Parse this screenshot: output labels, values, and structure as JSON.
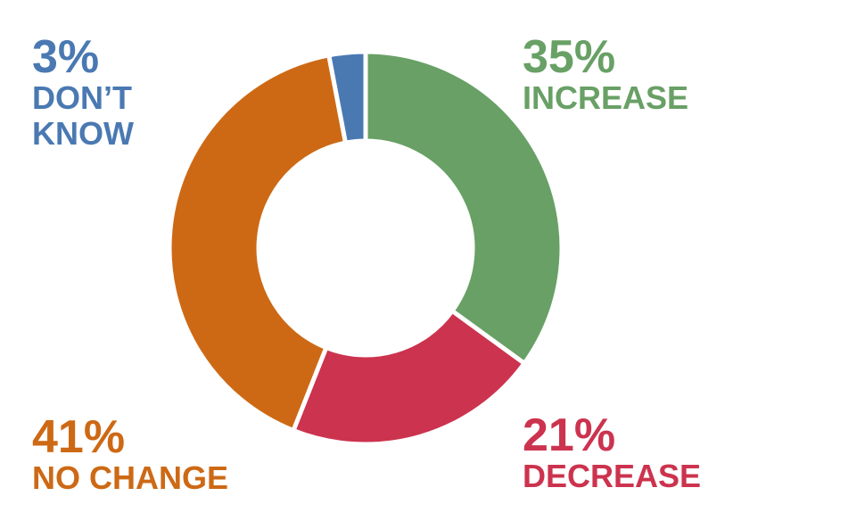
{
  "chart_data": {
    "type": "pie",
    "donut": true,
    "title": "",
    "slices": [
      {
        "label": "INCREASE",
        "value": 35,
        "value_label": "35%",
        "color": "#68a065"
      },
      {
        "label": "DECREASE",
        "value": 21,
        "value_label": "21%",
        "color": "#cc334e"
      },
      {
        "label": "NO CHANGE",
        "value": 41,
        "value_label": "41%",
        "color": "#cd6915"
      },
      {
        "label": "DON’T KNOW",
        "value": 3,
        "value_label": "3%",
        "color": "#4a79b2",
        "label_lines": [
          "DON’T",
          "KNOW"
        ]
      }
    ]
  }
}
